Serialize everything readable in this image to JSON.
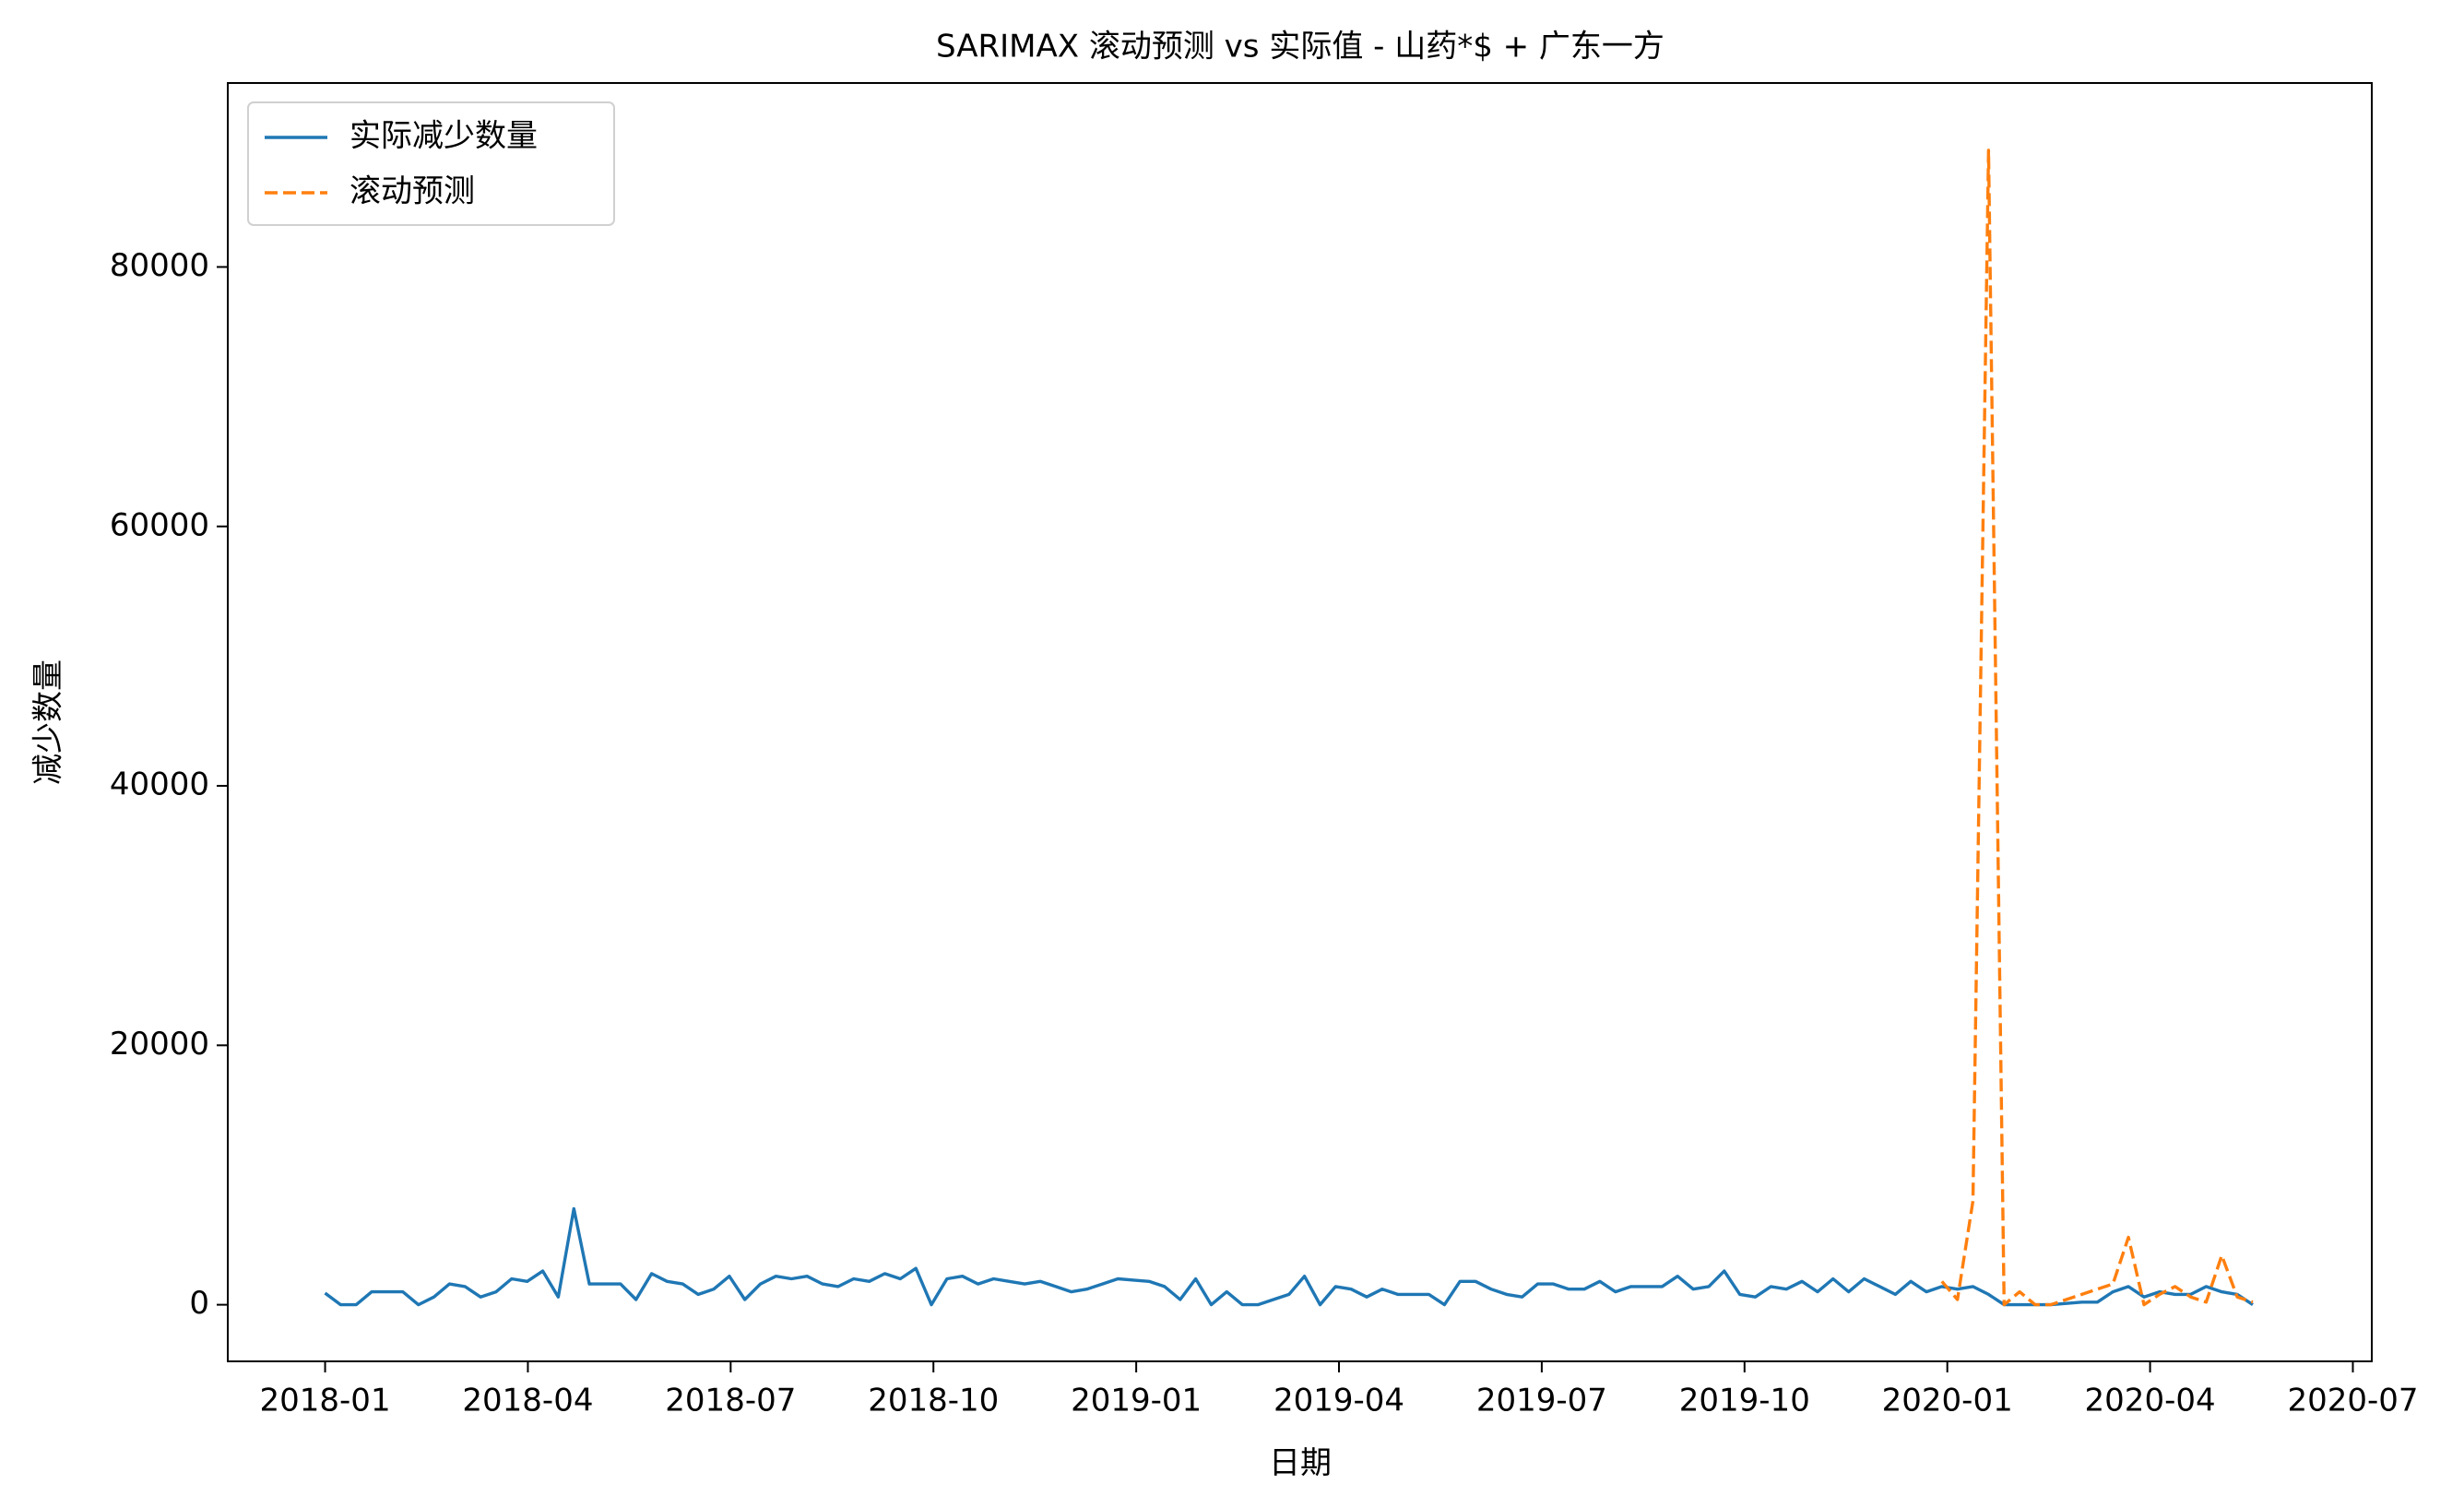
{
  "chart_data": {
    "type": "line",
    "title": "SARIMAX 滚动预测 vs 实际值 - 山药*$ + 广东一方",
    "x_label": "日期",
    "y_label": "减少数量",
    "legend": "upper left",
    "grid": false,
    "x": [
      0,
      0.23,
      0.46,
      0.69,
      0.92,
      1.15,
      1.38,
      1.61,
      1.84,
      2.07,
      2.3,
      2.53,
      2.76,
      2.99,
      3.22,
      3.45,
      3.68,
      3.91,
      4.14,
      4.37,
      4.6,
      4.83,
      5.06,
      5.29,
      5.52,
      5.75,
      5.98,
      6.21,
      6.44,
      6.67,
      6.9,
      7.13,
      7.36,
      7.59,
      7.82,
      8.05,
      8.28,
      8.51,
      8.74,
      8.97,
      9.2,
      9.43,
      9.66,
      9.89,
      10.12,
      10.35,
      10.58,
      10.81,
      11.04,
      11.27,
      11.5,
      11.73,
      11.96,
      12.19,
      12.42,
      12.65,
      12.88,
      13.11,
      13.34,
      13.57,
      13.8,
      14.03,
      14.26,
      14.49,
      14.72,
      14.95,
      15.18,
      15.41,
      15.64,
      15.87,
      16.1,
      16.33,
      16.56,
      16.79,
      17.02,
      17.25,
      17.48,
      17.71,
      17.94,
      18.17,
      18.4,
      18.63,
      18.86,
      19.09,
      19.32,
      19.55,
      19.78,
      20.01,
      20.24,
      20.47,
      20.7,
      20.93,
      21.16,
      21.39,
      21.62,
      21.85,
      22.08,
      22.31,
      22.54,
      22.77,
      23.0,
      23.23,
      23.46,
      23.69,
      23.92,
      24.15,
      24.38,
      24.61,
      24.84,
      25.07,
      25.3,
      25.53,
      25.76,
      25.99,
      26.22,
      26.45,
      26.68,
      26.91,
      27.14,
      27.37,
      27.6,
      27.83,
      28.06,
      28.29,
      28.52
    ],
    "series": [
      {
        "name": "实际减少数量",
        "color": "#1f77b4",
        "linestyle": "solid",
        "values": [
          900,
          0,
          0,
          1000,
          1000,
          1000,
          0,
          600,
          1600,
          1400,
          600,
          1000,
          2000,
          1800,
          2600,
          600,
          7400,
          1600,
          1600,
          1600,
          400,
          2400,
          1800,
          1600,
          800,
          1200,
          2200,
          400,
          1600,
          2200,
          2000,
          2200,
          1600,
          1400,
          2000,
          1800,
          2400,
          2000,
          2800,
          0,
          2000,
          2200,
          1600,
          2000,
          1800,
          1600,
          1800,
          1400,
          1000,
          1200,
          1600,
          2000,
          1900,
          1800,
          1400,
          400,
          2000,
          0,
          1000,
          0,
          0,
          400,
          800,
          2200,
          0,
          1400,
          1200,
          600,
          1200,
          800,
          800,
          800,
          0,
          1800,
          1800,
          1200,
          800,
          600,
          1600,
          1600,
          1200,
          1200,
          1800,
          1000,
          1400,
          1400,
          1400,
          2200,
          1200,
          1400,
          2600,
          800,
          600,
          1400,
          1200,
          1800,
          1000,
          2000,
          1000,
          2000,
          1400,
          800,
          1800,
          1000,
          1400,
          1200,
          1400,
          800,
          0,
          0,
          0,
          0,
          100,
          200,
          200,
          1000,
          1400,
          600,
          1000,
          800,
          800,
          1400,
          1000,
          800,
          0
        ]
      },
      {
        "name": "滚动预测",
        "color": "#ff7f0e",
        "linestyle": "dashed",
        "values": [
          null,
          null,
          null,
          null,
          null,
          null,
          null,
          null,
          null,
          null,
          null,
          null,
          null,
          null,
          null,
          null,
          null,
          null,
          null,
          null,
          null,
          null,
          null,
          null,
          null,
          null,
          null,
          null,
          null,
          null,
          null,
          null,
          null,
          null,
          null,
          null,
          null,
          null,
          null,
          null,
          null,
          null,
          null,
          null,
          null,
          null,
          null,
          null,
          null,
          null,
          null,
          null,
          null,
          null,
          null,
          null,
          null,
          null,
          null,
          null,
          null,
          null,
          null,
          null,
          null,
          null,
          null,
          null,
          null,
          null,
          null,
          null,
          null,
          null,
          null,
          null,
          null,
          null,
          null,
          null,
          null,
          null,
          null,
          null,
          null,
          null,
          null,
          null,
          null,
          null,
          null,
          null,
          null,
          null,
          null,
          null,
          null,
          null,
          null,
          null,
          null,
          null,
          null,
          null,
          1800,
          400,
          8000,
          89000,
          0,
          1000,
          0,
          0,
          400,
          800,
          1200,
          1600,
          5200,
          0,
          800,
          1400,
          600,
          200,
          3800,
          600,
          200
        ]
      }
    ],
    "xlim": [
      -1.44,
      30.28
    ],
    "xticks": [
      {
        "value": 0,
        "label": "2018-01"
      },
      {
        "value": 3,
        "label": "2018-04"
      },
      {
        "value": 6,
        "label": "2018-07"
      },
      {
        "value": 9,
        "label": "2018-10"
      },
      {
        "value": 12,
        "label": "2019-01"
      },
      {
        "value": 15,
        "label": "2019-04"
      },
      {
        "value": 18,
        "label": "2019-07"
      },
      {
        "value": 21,
        "label": "2019-10"
      },
      {
        "value": 24,
        "label": "2020-01"
      },
      {
        "value": 27,
        "label": "2020-04"
      },
      {
        "value": 30,
        "label": "2020-07"
      }
    ],
    "ylim": [
      -4364,
      94182
    ],
    "yticks": [
      0,
      20000,
      40000,
      60000,
      80000
    ]
  }
}
